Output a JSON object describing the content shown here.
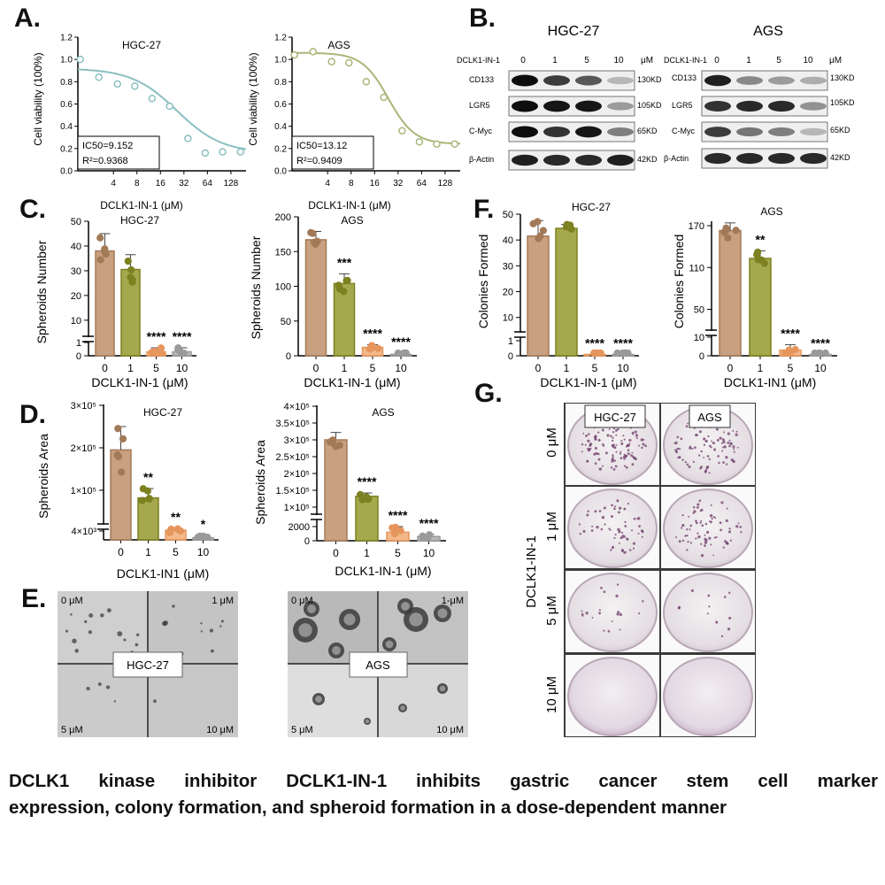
{
  "panels": {
    "A": "A.",
    "B": "B.",
    "C": "C.",
    "D": "D.",
    "E": "E.",
    "F": "F.",
    "G": "G."
  },
  "caption": {
    "line1": "DCLK1 kinase inhibitor DCLK1-IN-1 inhibits gastric cancer stem cell marker",
    "line2": "expression, colony formation, and spheroid formation in a dose-dependent manner"
  },
  "colors": {
    "c0": "#c9a080",
    "c1": "#a5a84c",
    "c5": "#f3b98a",
    "c10": "#b8b8b8",
    "hgc_curve": "#8cbfc0",
    "ags_curve": "#a9b779"
  },
  "western": {
    "hgc": {
      "title": "HGC-27",
      "treatment": "DCLK1-IN-1",
      "doses": [
        "0",
        "1",
        "5",
        "10"
      ],
      "unit": "μM",
      "proteins": [
        "CD133",
        "LGR5",
        "C-Myc",
        "β-Actin"
      ],
      "sizes": [
        "130KD",
        "105KD",
        "65KD",
        "42KD"
      ]
    },
    "ags": {
      "title": "AGS",
      "treatment": "DCLK1-IN-1",
      "doses": [
        "0",
        "1",
        "5",
        "10"
      ],
      "unit": "μM",
      "proteins": [
        "CD133",
        "LGR5",
        "C-Myc",
        "β-Actin"
      ],
      "sizes": [
        "130KD",
        "105KD",
        "65KD",
        "42KD"
      ]
    }
  },
  "images_E": {
    "hgc": {
      "label": "HGC-27",
      "doses": [
        "0 μM",
        "1 μM",
        "5 μM",
        "10 μM"
      ]
    },
    "ags": {
      "label": "AGS",
      "doses": [
        "0 μM",
        "1-μM",
        "5 μM",
        "10 μM"
      ]
    }
  },
  "plates_G": {
    "cols": [
      "HGC-27",
      "AGS"
    ],
    "rows": [
      "0 μM",
      "1 μM",
      "5 μM",
      "10 μM"
    ],
    "ylabel": "DCLK1-IN-1"
  },
  "chart_data": [
    {
      "id": "A-hgc",
      "type": "scatter",
      "title": "HGC-27",
      "xlabel": "DCLK1-IN-1 (μM)",
      "ylabel": "Cell viability (100%)",
      "x_scale": "log2",
      "xticks": [
        "4",
        "8",
        "16",
        "32",
        "64",
        "128"
      ],
      "yticks": [
        "0.0",
        "0.2",
        "0.4",
        "0.6",
        "0.8",
        "1.0",
        "1.2"
      ],
      "ylim": [
        0,
        1.2
      ],
      "points": [
        {
          "x": 1.5,
          "y": 1.0
        },
        {
          "x": 2.6,
          "y": 0.84
        },
        {
          "x": 4.5,
          "y": 0.78
        },
        {
          "x": 7.5,
          "y": 0.76
        },
        {
          "x": 12.5,
          "y": 0.65
        },
        {
          "x": 21,
          "y": 0.58
        },
        {
          "x": 36,
          "y": 0.29
        },
        {
          "x": 60,
          "y": 0.16
        },
        {
          "x": 100,
          "y": 0.17
        },
        {
          "x": 170,
          "y": 0.17
        }
      ],
      "annotation": [
        "IC50=9.152",
        "R²=0.9368"
      ]
    },
    {
      "id": "A-ags",
      "type": "scatter",
      "title": "AGS",
      "xlabel": "DCLK1-IN-1 (μM)",
      "ylabel": "Cell viability (100%)",
      "x_scale": "log2",
      "xticks": [
        "4",
        "8",
        "16",
        "32",
        "64",
        "128"
      ],
      "yticks": [
        "0.0",
        "0.2",
        "0.4",
        "0.6",
        "0.8",
        "1.0",
        "1.2"
      ],
      "ylim": [
        0,
        1.2
      ],
      "points": [
        {
          "x": 1.5,
          "y": 1.04
        },
        {
          "x": 2.6,
          "y": 1.07
        },
        {
          "x": 4.5,
          "y": 0.98
        },
        {
          "x": 7.5,
          "y": 0.97
        },
        {
          "x": 12.5,
          "y": 0.8
        },
        {
          "x": 21,
          "y": 0.66
        },
        {
          "x": 36,
          "y": 0.36
        },
        {
          "x": 60,
          "y": 0.26
        },
        {
          "x": 100,
          "y": 0.24
        },
        {
          "x": 170,
          "y": 0.24
        }
      ],
      "annotation": [
        "IC50=13.12",
        "R²=0.9409"
      ]
    },
    {
      "id": "C-hgc",
      "type": "bar",
      "title": "HGC-27",
      "xlabel": "DCLK1-IN-1 (μM)",
      "ylabel": "Spheroids Number",
      "categories": [
        "0",
        "1",
        "5",
        "10"
      ],
      "values": [
        38,
        30.5,
        0.3,
        0.3
      ],
      "errors": [
        7,
        6,
        0.3,
        0.3
      ],
      "sig": [
        "",
        "",
        "****",
        "****"
      ],
      "yticks": [
        "0",
        "1",
        "10",
        "20",
        "30",
        "40",
        "50"
      ]
    },
    {
      "id": "C-ags",
      "type": "bar",
      "title": "AGS",
      "xlabel": "DCLK1-IN-1 (μM)",
      "ylabel": "Spheroids Number",
      "categories": [
        "0",
        "1",
        "5",
        "10"
      ],
      "values": [
        167,
        104,
        12,
        2
      ],
      "errors": [
        12,
        14,
        4,
        2
      ],
      "sig": [
        "",
        "***",
        "****",
        "****"
      ],
      "yticks": [
        "0",
        "50",
        "100",
        "150",
        "200"
      ]
    },
    {
      "id": "D-hgc",
      "type": "bar",
      "title": "HGC-27",
      "xlabel": "DCLK1-IN1 (μM)",
      "ylabel": "Spheroids  Area",
      "categories": [
        "0",
        "1",
        "5",
        "10"
      ],
      "values": [
        195000,
        82000,
        6000,
        1000
      ],
      "errors": [
        55000,
        22000,
        4000,
        1000
      ],
      "sig": [
        "",
        "**",
        "**",
        "*"
      ],
      "yticks": [
        "4×10³",
        "1×10⁵",
        "2×10⁵",
        "3×10⁵"
      ]
    },
    {
      "id": "D-ags",
      "type": "bar",
      "title": "AGS",
      "xlabel": "DCLK1-IN-1 (μM)",
      "ylabel": "Spheroids  Area",
      "categories": [
        "0",
        "1",
        "5",
        "10"
      ],
      "values": [
        300000,
        132000,
        1200,
        600
      ],
      "errors": [
        22000,
        10000,
        800,
        300
      ],
      "sig": [
        "",
        "****",
        "****",
        "****"
      ],
      "yticks": [
        "0",
        "2000",
        "1×10⁵",
        "1.5×10⁵",
        "2×10⁵",
        "2.5×10⁵",
        "3×10⁵",
        "3.5×10⁵",
        "4×10⁵"
      ]
    },
    {
      "id": "F-hgc",
      "type": "bar",
      "title": "HGC-27",
      "xlabel": "DCLK1-IN-1 (μM)",
      "ylabel": "Colonies Formed",
      "categories": [
        "0",
        "1",
        "5",
        "10"
      ],
      "values": [
        41.5,
        44.5,
        0,
        0
      ],
      "errors": [
        6,
        1.5,
        0,
        0
      ],
      "sig": [
        "",
        "",
        "****",
        "****"
      ],
      "yticks": [
        "0",
        "1",
        "10",
        "20",
        "30",
        "40",
        "50"
      ]
    },
    {
      "id": "F-ags",
      "type": "bar",
      "title": "AGS",
      "xlabel": "DCLK1-IN1 (μM)",
      "ylabel": "Colonies Formed",
      "categories": [
        "0",
        "1",
        "5",
        "10"
      ],
      "values": [
        163,
        123,
        3,
        0
      ],
      "errors": [
        11,
        11,
        3,
        0
      ],
      "sig": [
        "",
        "**",
        "****",
        "****"
      ],
      "yticks": [
        "0",
        "10",
        "50",
        "110",
        "170"
      ]
    }
  ]
}
